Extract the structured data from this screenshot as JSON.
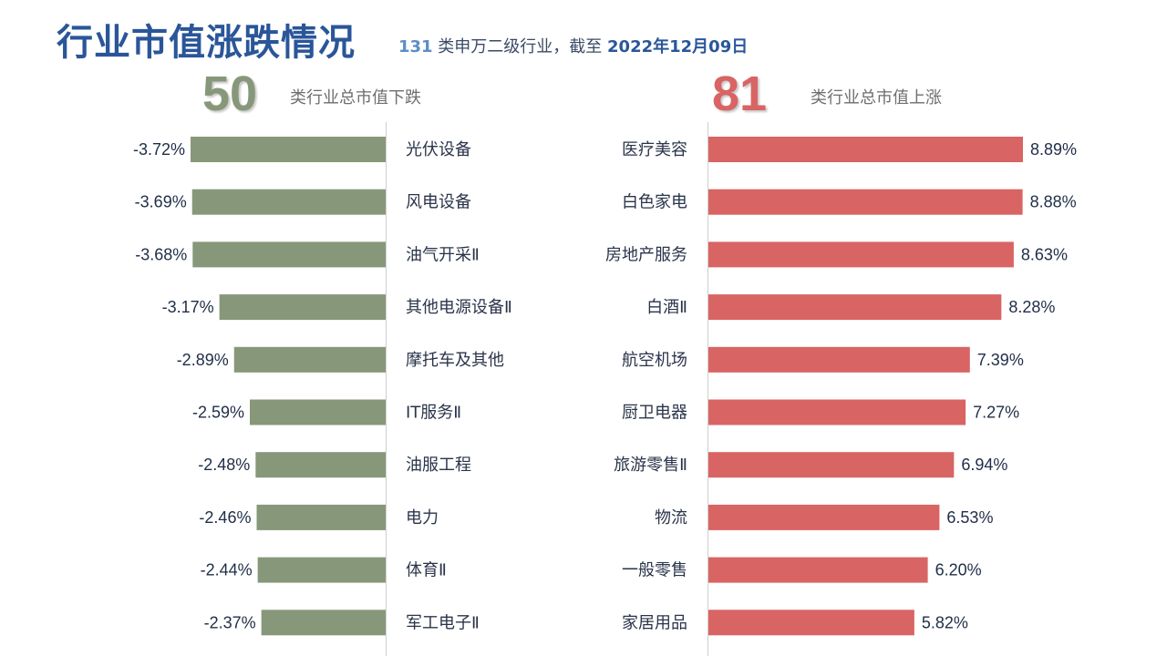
{
  "header": {
    "title": "行业市值涨跌情况",
    "subtitle_count": "131",
    "subtitle_text": " 类申万二级行业，截至 ",
    "subtitle_date": "2022年12月09日"
  },
  "summary": {
    "down_count": "50",
    "down_label": "类行业总市值下跌",
    "up_count": "81",
    "up_label": "类行业总市值上涨"
  },
  "colors": {
    "down_bar": "#87987a",
    "up_bar": "#d96464",
    "title": "#2a5699"
  },
  "chart_data": [
    {
      "type": "bar",
      "orientation": "horizontal",
      "direction": "leftward",
      "categories": [
        "光伏设备",
        "风电设备",
        "油气开采Ⅱ",
        "其他电源设备Ⅱ",
        "摩托车及其他",
        "IT服务Ⅱ",
        "油服工程",
        "电力",
        "体育Ⅱ",
        "军工电子Ⅱ"
      ],
      "values": [
        -3.72,
        -3.69,
        -3.68,
        -3.17,
        -2.89,
        -2.59,
        -2.48,
        -2.46,
        -2.44,
        -2.37
      ],
      "labels": [
        "-3.72%",
        "-3.69%",
        "-3.68%",
        "-3.17%",
        "-2.89%",
        "-2.59%",
        "-2.48%",
        "-2.46%",
        "-2.44%",
        "-2.37%"
      ],
      "color": "#87987a"
    },
    {
      "type": "bar",
      "orientation": "horizontal",
      "direction": "rightward",
      "categories": [
        "医疗美容",
        "白色家电",
        "房地产服务",
        "白酒Ⅱ",
        "航空机场",
        "厨卫电器",
        "旅游零售Ⅱ",
        "物流",
        "一般零售",
        "家居用品"
      ],
      "values": [
        8.89,
        8.88,
        8.63,
        8.28,
        7.39,
        7.27,
        6.94,
        6.53,
        6.2,
        5.82
      ],
      "labels": [
        "8.89%",
        "8.88%",
        "8.63%",
        "8.28%",
        "7.39%",
        "7.27%",
        "6.94%",
        "6.53%",
        "6.20%",
        "5.82%"
      ],
      "color": "#d96464"
    }
  ]
}
